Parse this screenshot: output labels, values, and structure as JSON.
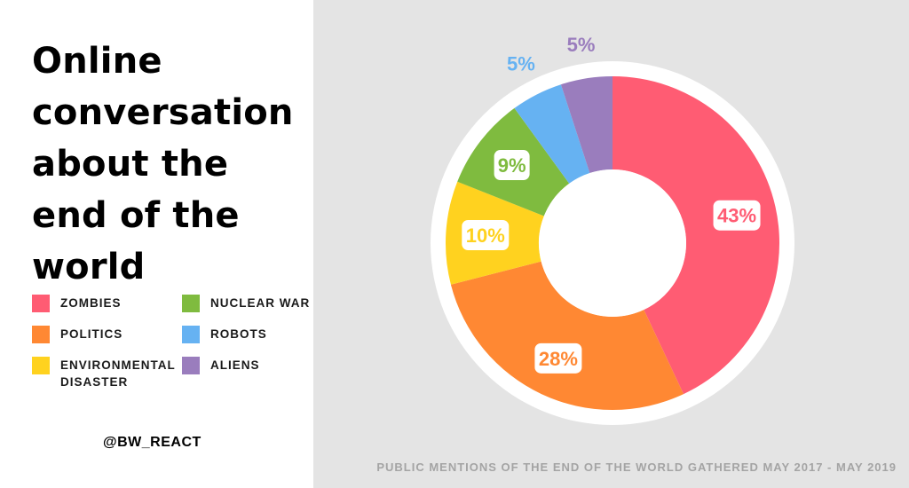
{
  "title": "Online conversation about the end of the world",
  "handle": "@BW_REACT",
  "footnote": "PUBLIC MENTIONS OF THE END OF THE WORLD GATHERED MAY 2017 - MAY 2019",
  "legend": [
    {
      "label": "ZOMBIES",
      "color": "#ff5c73"
    },
    {
      "label": "POLITICS",
      "color": "#ff8833"
    },
    {
      "label": "ENVIRONMENTAL DISASTER",
      "color": "#ffd21f"
    },
    {
      "label": "NUCLEAR WAR",
      "color": "#7fbb3f"
    },
    {
      "label": "ROBOTS",
      "color": "#66b2f2"
    },
    {
      "label": "ALIENS",
      "color": "#9a7dbd"
    }
  ],
  "chart_data": {
    "type": "pie",
    "variant": "donut",
    "categories": [
      "ZOMBIES",
      "POLITICS",
      "ENVIRONMENTAL DISASTER",
      "NUCLEAR WAR",
      "ROBOTS",
      "ALIENS"
    ],
    "values": [
      43,
      28,
      10,
      9,
      5,
      5
    ],
    "labels": [
      "43%",
      "28%",
      "10%",
      "9%",
      "5%",
      "5%"
    ],
    "colors": [
      "#ff5c73",
      "#ff8833",
      "#ffd21f",
      "#7fbb3f",
      "#66b2f2",
      "#9a7dbd"
    ],
    "legend_position": "left"
  }
}
